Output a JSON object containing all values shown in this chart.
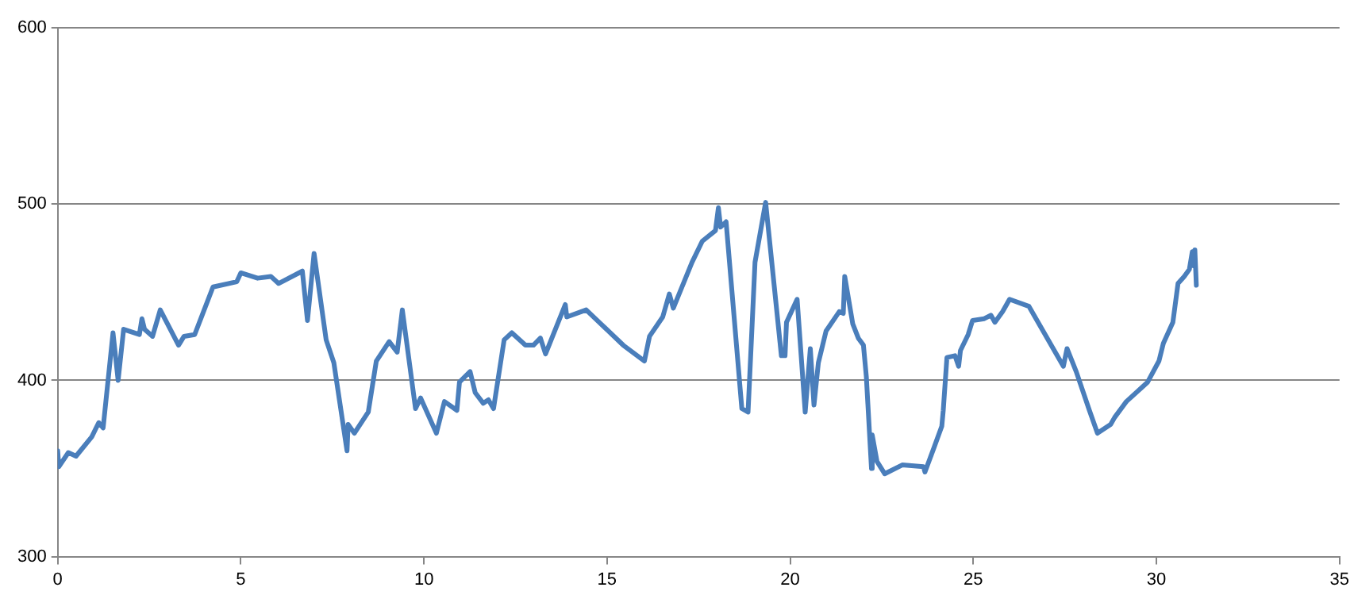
{
  "chart_data": {
    "type": "line",
    "xlim": [
      0,
      35
    ],
    "xticks": [
      0,
      5,
      10,
      15,
      20,
      25,
      30,
      35
    ],
    "ylim": [
      300,
      600
    ],
    "yticks": [
      300,
      400,
      500,
      600
    ],
    "grid": "y",
    "marker": "none",
    "line_style": "solid",
    "legend": false,
    "series": [
      {
        "color": "#4a7ebb",
        "x": [
          0,
          0.03,
          0.29,
          0.5,
          0.93,
          1.12,
          1.24,
          1.51,
          1.65,
          1.8,
          2.23,
          2.3,
          2.37,
          2.59,
          2.8,
          3.3,
          3.45,
          3.74,
          4.24,
          4.89,
          5.0,
          5.46,
          5.82,
          6.03,
          6.68,
          6.82,
          7.0,
          7.33,
          7.54,
          7.9,
          7.93,
          8.1,
          8.48,
          8.7,
          9.05,
          9.27,
          9.41,
          9.77,
          9.91,
          10.34,
          10.56,
          10.9,
          10.97,
          11.26,
          11.4,
          11.62,
          11.76,
          11.9,
          12.19,
          12.4,
          12.77,
          12.99,
          13.18,
          13.32,
          13.86,
          13.9,
          14.43,
          15.44,
          16.02,
          16.16,
          16.52,
          16.7,
          16.81,
          17.32,
          17.6,
          17.96,
          18.04,
          18.1,
          18.25,
          18.68,
          18.85,
          19.04,
          19.33,
          19.76,
          19.86,
          19.9,
          20.19,
          20.41,
          20.55,
          20.65,
          20.77,
          20.98,
          21.34,
          21.45,
          21.49,
          21.71,
          21.86,
          22.0,
          22.08,
          22.22,
          22.24,
          22.37,
          22.58,
          23.06,
          23.64,
          23.68,
          23.93,
          24.14,
          24.18,
          24.28,
          24.5,
          24.6,
          24.65,
          24.86,
          24.98,
          25.3,
          25.48,
          25.59,
          25.8,
          25.99,
          26.52,
          27.46,
          27.56,
          27.81,
          28.17,
          28.39,
          28.75,
          28.86,
          29.18,
          29.76,
          30.07,
          30.19,
          30.45,
          30.59,
          30.76,
          30.9,
          30.98,
          31.02,
          31.05,
          31.09
        ],
        "values": [
          360,
          351,
          359,
          357,
          368,
          376,
          373,
          427,
          400,
          429,
          426,
          435,
          429,
          425,
          440,
          420,
          425,
          426,
          453,
          456,
          461,
          458,
          459,
          455,
          462,
          434,
          472,
          423,
          410,
          360,
          375,
          370,
          382,
          411,
          422,
          416,
          440,
          384,
          390,
          370,
          388,
          383,
          399,
          405,
          393,
          387,
          389,
          384,
          423,
          427,
          420,
          420,
          424,
          415,
          443,
          436,
          440,
          420,
          411,
          425,
          436,
          449,
          441,
          467,
          479,
          485,
          498,
          487,
          490,
          384,
          382,
          467,
          501,
          414,
          414,
          433,
          446,
          382,
          418,
          386,
          410,
          428,
          439,
          438,
          459,
          432,
          424,
          420,
          402,
          350,
          369,
          354,
          347,
          352,
          351,
          348,
          362,
          374,
          383,
          413,
          414,
          408,
          417,
          426,
          434,
          435,
          437,
          433,
          439,
          446,
          442,
          408,
          418,
          405,
          383,
          370,
          375,
          379,
          388,
          399,
          411,
          421,
          433,
          455,
          459,
          463,
          473,
          465,
          474,
          454
        ]
      }
    ]
  }
}
